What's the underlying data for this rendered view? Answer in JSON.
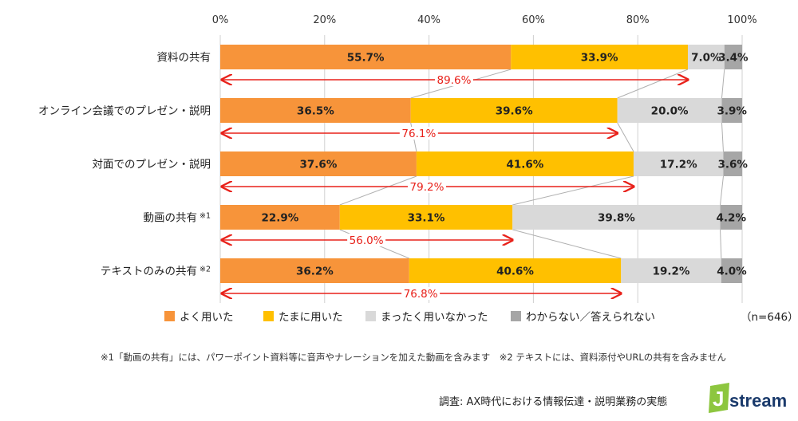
{
  "chart_data": {
    "type": "bar",
    "orientation": "horizontal",
    "stacked": true,
    "categories": [
      "資料の共有",
      "オンライン会議でのプレゼン・説明",
      "対面でのプレゼン・説明",
      "動画の共有",
      "テキストのみの共有"
    ],
    "category_notes": [
      "",
      "",
      "",
      "※1",
      "※2"
    ],
    "series": [
      {
        "name": "よく用いた",
        "color": "#F7943A",
        "values": [
          55.7,
          36.5,
          37.6,
          22.9,
          36.2
        ]
      },
      {
        "name": "たまに用いた",
        "color": "#FFC000",
        "values": [
          33.9,
          39.6,
          41.6,
          33.1,
          40.6
        ]
      },
      {
        "name": "まったく用いなかった",
        "color": "#D9D9D9",
        "values": [
          7.0,
          20.0,
          17.2,
          39.8,
          19.2
        ]
      },
      {
        "name": "わからない／答えられない",
        "color": "#A6A6A6",
        "values": [
          3.4,
          3.9,
          3.6,
          4.2,
          4.0
        ]
      }
    ],
    "totals_used": [
      89.6,
      76.1,
      79.2,
      56.0,
      76.8
    ],
    "totals_color": "#E8211A",
    "xticks": [
      "0%",
      "20%",
      "40%",
      "60%",
      "80%",
      "100%"
    ],
    "xlim": [
      0,
      100
    ],
    "grid": true,
    "legend_position": "bottom",
    "sample_size": "（n=646）"
  },
  "footnote": "※1「動画の共有」には、パワーポイント資料等に音声やナレーションを加えた動画を含みます　※2 テキストには、資料添付やURLの共有を含みません",
  "source": "調査: AX時代における情報伝達・説明業務の実態",
  "logo_text": "stream",
  "logo_letter": "J"
}
